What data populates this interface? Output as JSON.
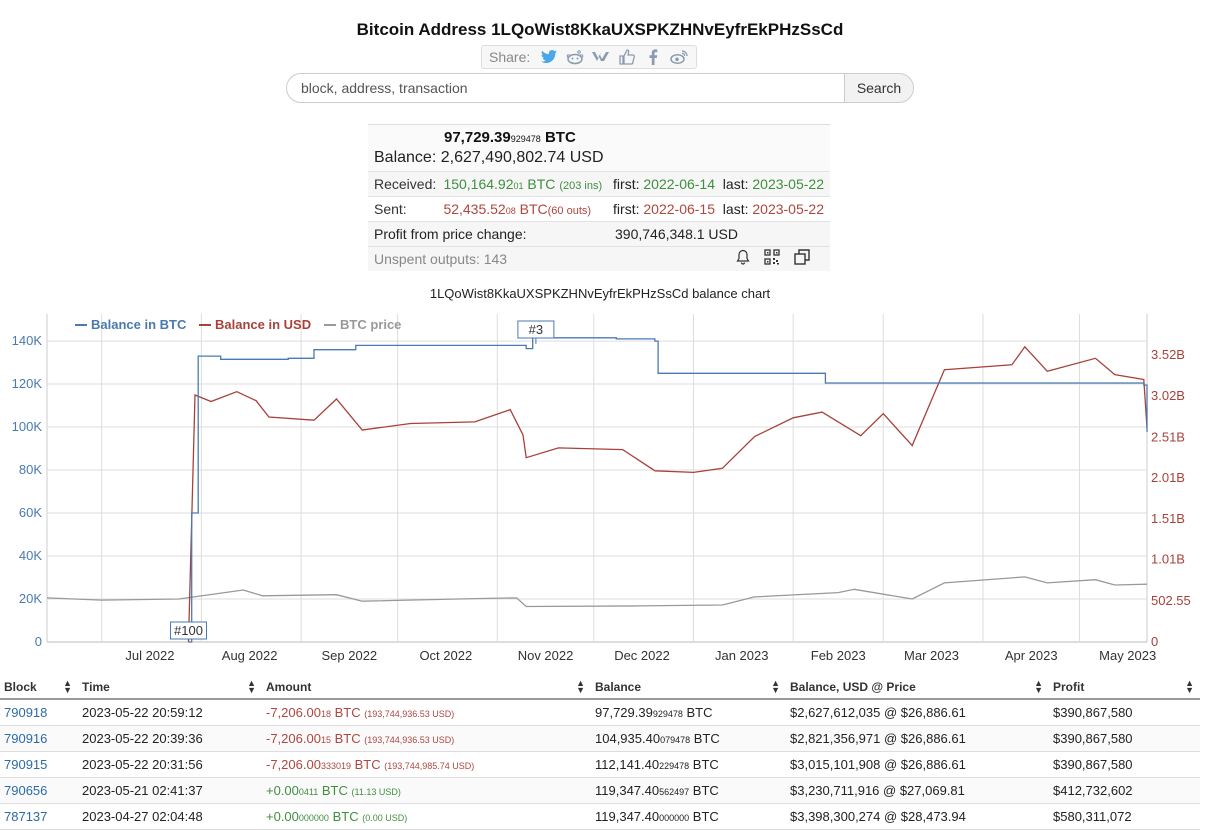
{
  "page": {
    "title": "Bitcoin Address 1LQoWist8KkaUXSPKZHNvEyfrEkPHzSsCd"
  },
  "share": {
    "label": "Share:",
    "icons": [
      "twitter-icon",
      "reddit-icon",
      "vk-icon",
      "like-icon",
      "facebook-icon",
      "weibo-icon"
    ]
  },
  "search": {
    "placeholder": "block, address, transaction",
    "button_label": "Search"
  },
  "summary": {
    "btc_main": "97,729.39",
    "btc_small": "929478",
    "btc_unit": "BTC",
    "balance_label": "Balance:",
    "balance_usd": "2,627,490,802.74 USD",
    "received_label": "Received:",
    "received_main": "150,164.92",
    "received_small": "01",
    "received_unit": "BTC",
    "received_count": "(203 ins)",
    "received_first_label": "first:",
    "received_first": "2022-06-14",
    "received_last_label": "last:",
    "received_last": "2023-05-22",
    "sent_label": "Sent:",
    "sent_main": "52,435.52",
    "sent_small": "08",
    "sent_unit": "BTC",
    "sent_count": "(60 outs)",
    "sent_first_label": "first:",
    "sent_first": "2022-06-15",
    "sent_last_label": "last:",
    "sent_last": "2023-05-22",
    "profit_label": "Profit from price change:",
    "profit_value": "390,746,348.1 USD",
    "unspent_label": "Unspent outputs: 143",
    "icons": [
      "bell-icon",
      "qr-code-icon",
      "copy-icon"
    ]
  },
  "chart_title": "1LQoWist8KkaUXSPKZHNvEyfrEkPHzSsCd balance chart",
  "chart_data": {
    "type": "line",
    "legend": [
      "Balance in BTC",
      "Balance in USD",
      "BTC price"
    ],
    "legend_placement": "top-left",
    "x_ticks": [
      "Jul 2022",
      "Aug 2022",
      "Sep 2022",
      "Oct 2022",
      "Nov 2022",
      "Dec 2022",
      "Jan 2023",
      "Feb 2023",
      "Mar 2023",
      "Apr 2023",
      "May 2023"
    ],
    "y_left_ticks": [
      "0",
      "20K",
      "40K",
      "60K",
      "80K",
      "100K",
      "120K",
      "140K"
    ],
    "y_right_ticks": [
      "0",
      "502.55",
      "1.01B",
      "1.51B",
      "2.01B",
      "2.51B",
      "3.02B",
      "3.52B"
    ],
    "annotations": [
      "#3",
      "#100"
    ],
    "colors": {
      "btc": "#4a7ab0",
      "usd": "#a8413b",
      "price": "#999999"
    },
    "series": [
      {
        "name": "Balance in BTC",
        "axis": "left",
        "points": [
          [
            "2022-07-28",
            0
          ],
          [
            "2022-07-29",
            60000
          ],
          [
            "2022-07-31",
            133000
          ],
          [
            "2022-08-07",
            131500
          ],
          [
            "2022-08-28",
            132000
          ],
          [
            "2022-09-05",
            136000
          ],
          [
            "2022-09-18",
            138000
          ],
          [
            "2022-10-15",
            138000
          ],
          [
            "2022-11-10",
            136500
          ],
          [
            "2022-11-12",
            144500
          ],
          [
            "2022-11-17",
            141500
          ],
          [
            "2022-12-08",
            141000
          ],
          [
            "2022-12-20",
            140000
          ],
          [
            "2022-12-21",
            125000
          ],
          [
            "2023-02-10",
            125000
          ],
          [
            "2023-02-11",
            120500
          ],
          [
            "2023-05-21",
            119500
          ],
          [
            "2023-05-22",
            97729
          ]
        ]
      },
      {
        "name": "Balance in USD",
        "axis": "right",
        "points": [
          [
            "2022-07-28",
            0
          ],
          [
            "2022-07-30",
            3030000000
          ],
          [
            "2022-08-04",
            2950000000
          ],
          [
            "2022-08-12",
            3070000000
          ],
          [
            "2022-08-18",
            2960000000
          ],
          [
            "2022-08-22",
            2760000000
          ],
          [
            "2022-09-05",
            2720000000
          ],
          [
            "2022-09-12",
            2980000000
          ],
          [
            "2022-09-20",
            2600000000
          ],
          [
            "2022-10-05",
            2680000000
          ],
          [
            "2022-10-25",
            2700000000
          ],
          [
            "2022-11-05",
            2850000000
          ],
          [
            "2022-11-09",
            2540000000
          ],
          [
            "2022-11-10",
            2260000000
          ],
          [
            "2022-11-20",
            2380000000
          ],
          [
            "2022-12-10",
            2360000000
          ],
          [
            "2022-12-20",
            2100000000
          ],
          [
            "2023-01-01",
            2080000000
          ],
          [
            "2023-01-10",
            2130000000
          ],
          [
            "2023-01-20",
            2520000000
          ],
          [
            "2023-02-01",
            2750000000
          ],
          [
            "2023-02-10",
            2820000000
          ],
          [
            "2023-02-22",
            2530000000
          ],
          [
            "2023-03-01",
            2800000000
          ],
          [
            "2023-03-10",
            2410000000
          ],
          [
            "2023-03-20",
            3340000000
          ],
          [
            "2023-04-10",
            3400000000
          ],
          [
            "2023-04-14",
            3620000000
          ],
          [
            "2023-04-21",
            3320000000
          ],
          [
            "2023-05-06",
            3480000000
          ],
          [
            "2023-05-12",
            3280000000
          ],
          [
            "2023-05-21",
            3220000000
          ],
          [
            "2023-05-22",
            2627490802
          ]
        ]
      },
      {
        "name": "BTC price",
        "axis": "left",
        "points": [
          [
            "2022-06-14",
            20500
          ],
          [
            "2022-07-01",
            19500
          ],
          [
            "2022-07-25",
            20000
          ],
          [
            "2022-08-14",
            24200
          ],
          [
            "2022-08-20",
            21500
          ],
          [
            "2022-09-12",
            22000
          ],
          [
            "2022-09-20",
            19000
          ],
          [
            "2022-10-25",
            20200
          ],
          [
            "2022-11-07",
            20500
          ],
          [
            "2022-11-10",
            16500
          ],
          [
            "2022-12-15",
            16800
          ],
          [
            "2023-01-10",
            17200
          ],
          [
            "2023-01-20",
            21000
          ],
          [
            "2023-02-15",
            23000
          ],
          [
            "2023-02-20",
            24500
          ],
          [
            "2023-03-10",
            20000
          ],
          [
            "2023-03-20",
            27500
          ],
          [
            "2023-04-14",
            30300
          ],
          [
            "2023-04-21",
            27500
          ],
          [
            "2023-05-06",
            29000
          ],
          [
            "2023-05-12",
            26500
          ],
          [
            "2023-05-22",
            26886
          ]
        ]
      }
    ]
  },
  "table": {
    "headers": [
      "Block",
      "Time",
      "Amount",
      "Balance",
      "Balance, USD @ Price",
      "Profit"
    ],
    "rows": [
      {
        "block": "790918",
        "time": "2023-05-22 20:59:12",
        "amt_main": "-7,206.00",
        "amt_small": "18",
        "amt_unit": "BTC",
        "amt_usd": "(193,744,936.53 USD)",
        "bal_main": "97,729.39",
        "bal_small": "929478",
        "bal_unit": "BTC",
        "bal_usd": "$2,627,612,035 @ $26,886.61",
        "profit": "$390,867,580"
      },
      {
        "block": "790916",
        "time": "2023-05-22 20:39:36",
        "amt_main": "-7,206.00",
        "amt_small": "15",
        "amt_unit": "BTC",
        "amt_usd": "(193,744,936.53 USD)",
        "bal_main": "104,935.40",
        "bal_small": "079478",
        "bal_unit": "BTC",
        "bal_usd": "$2,821,356,971 @ $26,886.61",
        "profit": "$390,867,580"
      },
      {
        "block": "790915",
        "time": "2023-05-22 20:31:56",
        "amt_main": "-7,206.00",
        "amt_small": "333019",
        "amt_unit": "BTC",
        "amt_usd": "(193,744,985.74 USD)",
        "bal_main": "112,141.40",
        "bal_small": "229478",
        "bal_unit": "BTC",
        "bal_usd": "$3,015,101,908 @ $26,886.61",
        "profit": "$390,867,580"
      },
      {
        "block": "790656",
        "time": "2023-05-21 02:41:37",
        "amt_main": "+0.00",
        "amt_small": "0411",
        "amt_unit": "BTC",
        "amt_usd": "(11.13 USD)",
        "bal_main": "119,347.40",
        "bal_small": "562497",
        "bal_unit": "BTC",
        "bal_usd": "$3,230,711,916 @ $27,069.81",
        "profit": "$412,732,602"
      },
      {
        "block": "787137",
        "time": "2023-04-27 02:04:48",
        "amt_main": "+0.00",
        "amt_small": "000000",
        "amt_unit": "BTC",
        "amt_usd": "(0.00 USD)",
        "bal_main": "119,347.40",
        "bal_small": "000000",
        "bal_unit": "BTC",
        "bal_usd": "$3,398,300,274 @ $28,473.94",
        "profit": "$580,311,072"
      }
    ]
  }
}
